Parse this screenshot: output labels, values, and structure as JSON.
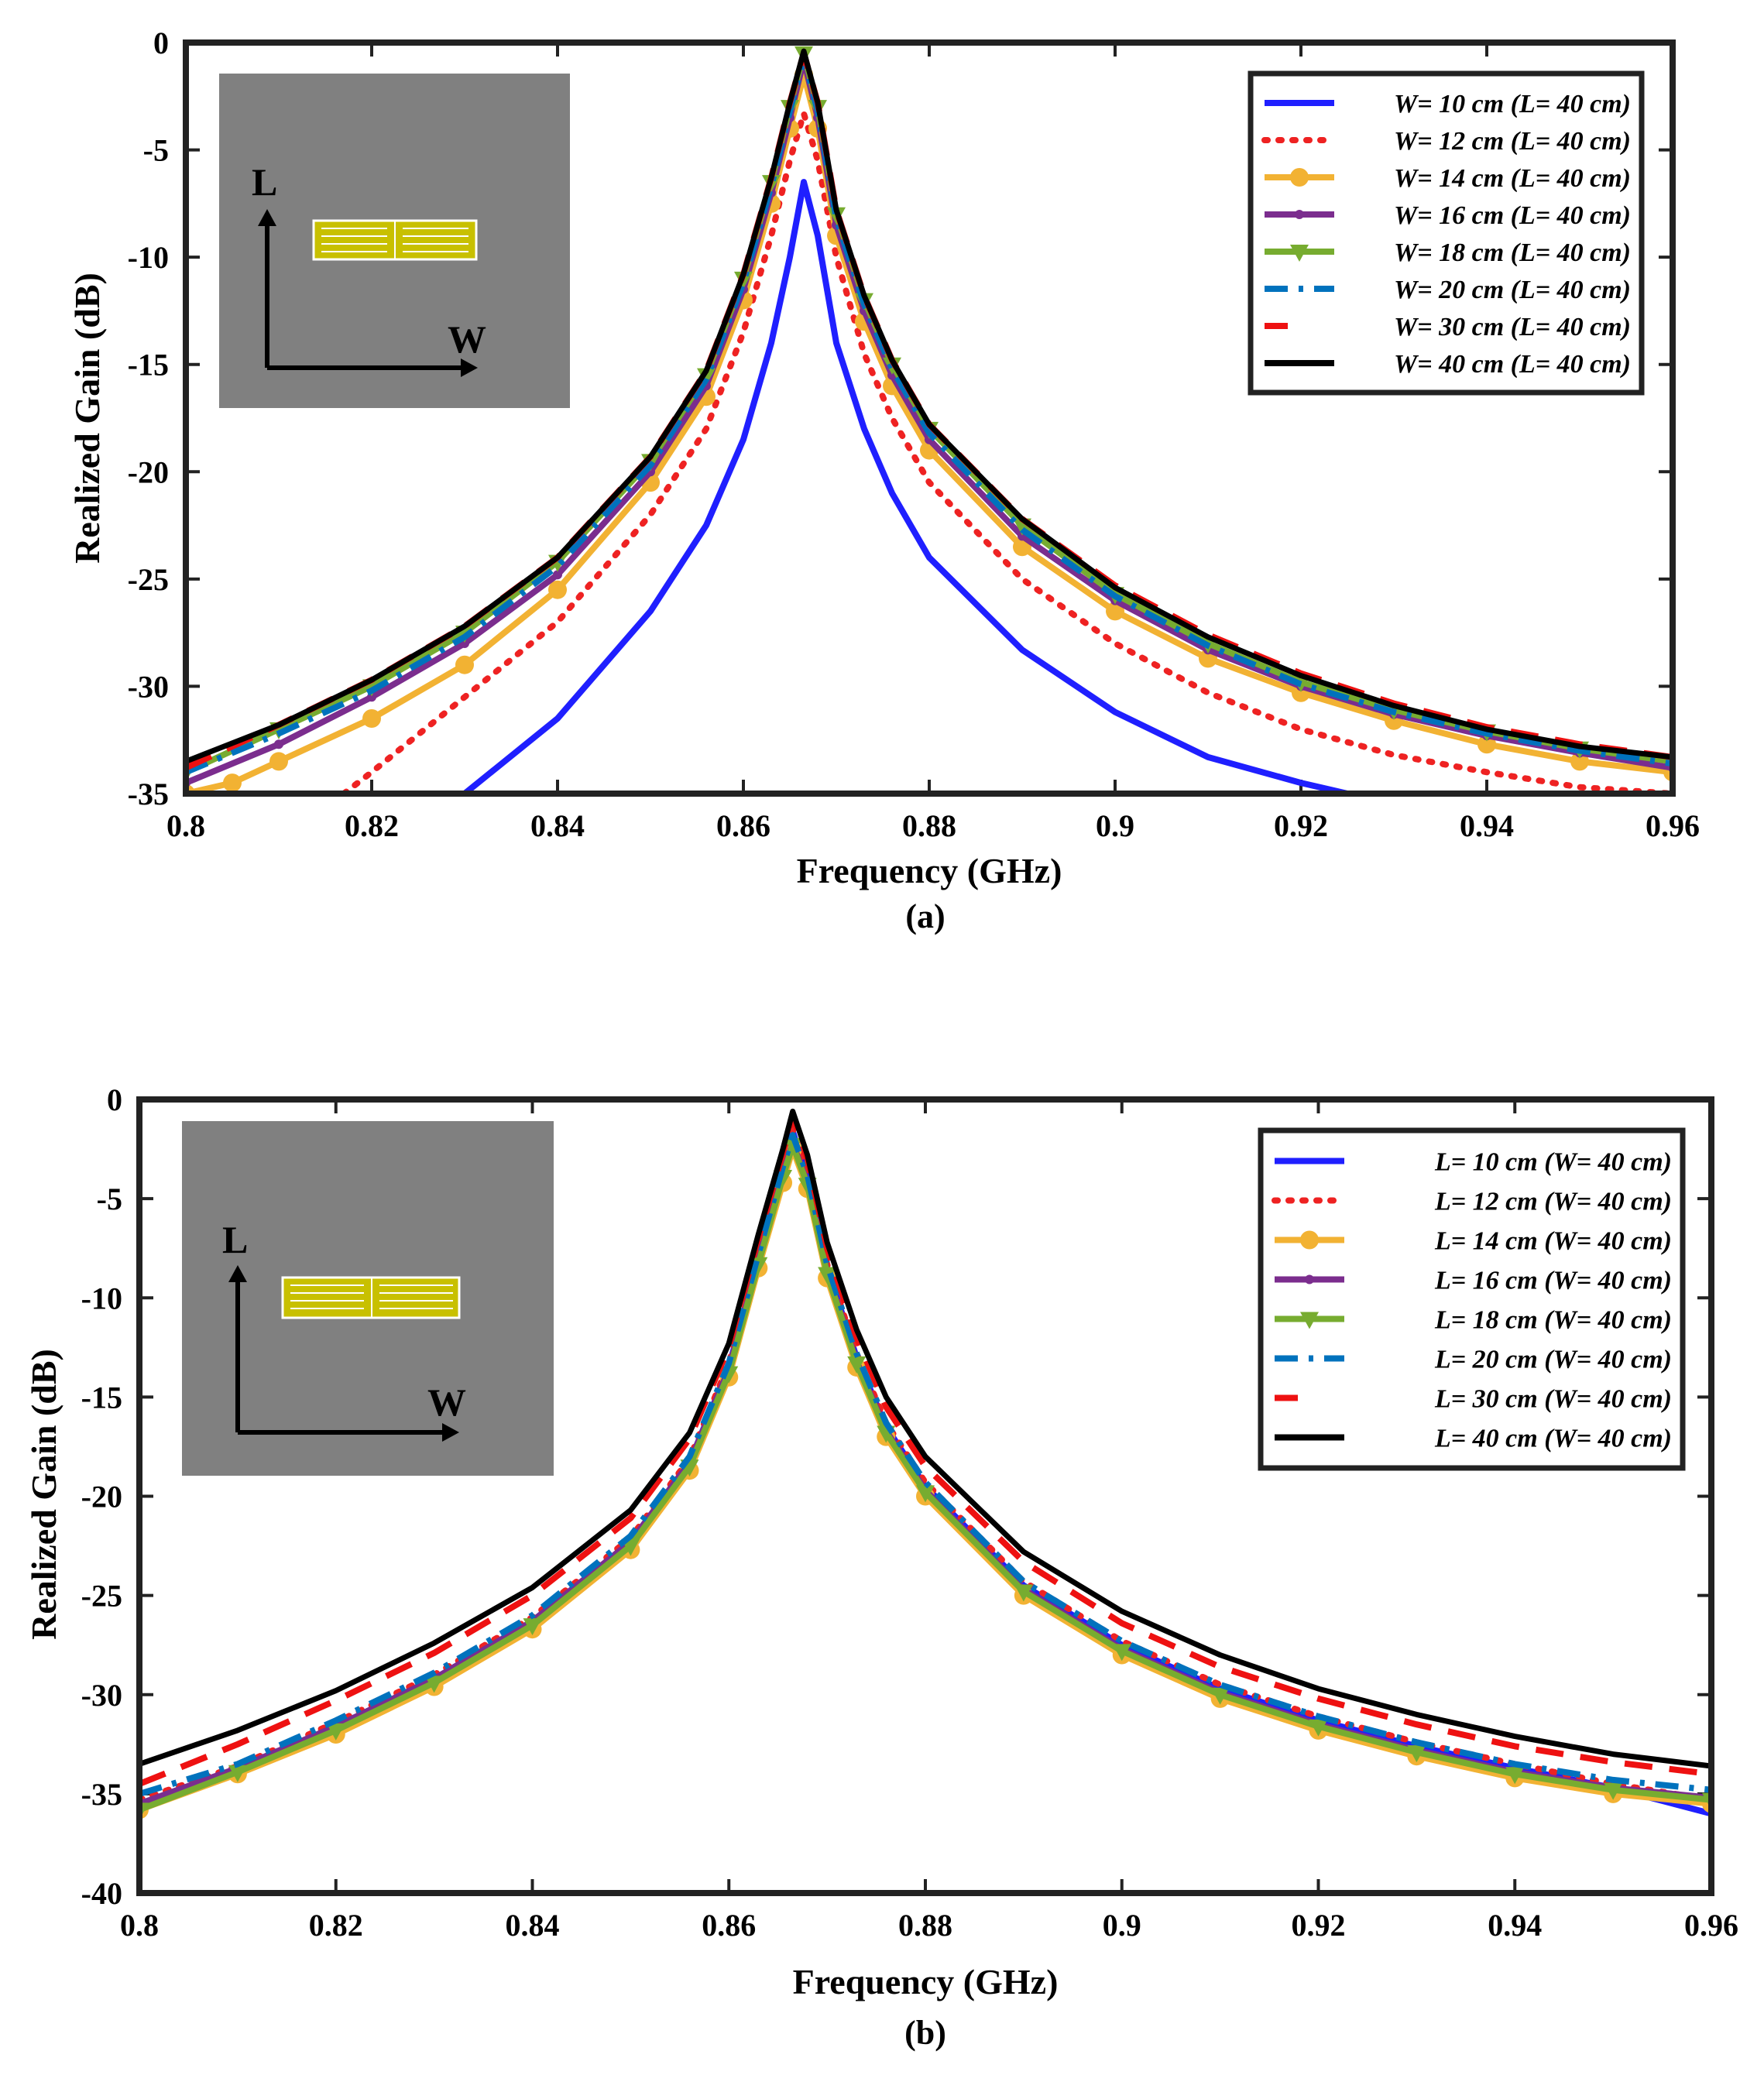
{
  "chart_data": [
    {
      "type": "line",
      "panel_label": "(a)",
      "xlabel": "Frequency (GHz)",
      "ylabel": "Realized Gain (dB)",
      "xlim": [
        0.8,
        0.96
      ],
      "ylim": [
        -35,
        0
      ],
      "xticks": [
        0.8,
        0.82,
        0.84,
        0.86,
        0.88,
        0.9,
        0.92,
        0.94,
        0.96
      ],
      "yticks": [
        0,
        -5,
        -10,
        -15,
        -20,
        -25,
        -30,
        -35
      ],
      "xtick_labels": [
        "0.8",
        "0.82",
        "0.84",
        "0.86",
        "0.88",
        "0.9",
        "0.92",
        "0.94",
        "0.96"
      ],
      "ytick_labels": [
        "0",
        "-5",
        "-10",
        "-15",
        "-20",
        "-25",
        "-30",
        "-35"
      ],
      "legend_position": "top-right",
      "inset": {
        "axis_vertical": "L",
        "axis_horizontal": "W"
      },
      "series": [
        {
          "name": "W= 10 cm (L= 40 cm)",
          "color": "#1f1fff",
          "style": "solid",
          "marker": "none",
          "x": [
            0.83,
            0.84,
            0.85,
            0.856,
            0.86,
            0.863,
            0.865,
            0.8665,
            0.868,
            0.87,
            0.873,
            0.876,
            0.88,
            0.89,
            0.9,
            0.91,
            0.92,
            0.925
          ],
          "y": [
            -35,
            -31.5,
            -26.5,
            -22.5,
            -18.5,
            -14,
            -10,
            -6.5,
            -9,
            -14,
            -18,
            -21,
            -24,
            -28.3,
            -31.2,
            -33.3,
            -34.5,
            -35
          ]
        },
        {
          "name": "W= 12 cm (L= 40 cm)",
          "color": "#ee2222",
          "style": "dotted",
          "marker": "none",
          "x": [
            0.817,
            0.82,
            0.83,
            0.84,
            0.85,
            0.856,
            0.86,
            0.863,
            0.865,
            0.8665,
            0.868,
            0.87,
            0.873,
            0.876,
            0.88,
            0.89,
            0.9,
            0.91,
            0.92,
            0.93,
            0.94,
            0.95,
            0.96
          ],
          "y": [
            -35,
            -34,
            -30.5,
            -27,
            -22,
            -18,
            -13.5,
            -9,
            -5.5,
            -3.3,
            -5.5,
            -10,
            -14.5,
            -17.5,
            -20.5,
            -25,
            -28,
            -30.3,
            -32,
            -33.2,
            -34,
            -34.7,
            -35
          ]
        },
        {
          "name": "W= 14 cm (L= 40 cm)",
          "color": "#f2b233",
          "style": "solid",
          "marker": "circle",
          "x": [
            0.8,
            0.805,
            0.81,
            0.82,
            0.83,
            0.84,
            0.85,
            0.856,
            0.86,
            0.863,
            0.865,
            0.8665,
            0.868,
            0.87,
            0.873,
            0.876,
            0.88,
            0.89,
            0.9,
            0.91,
            0.92,
            0.93,
            0.94,
            0.95,
            0.96
          ],
          "y": [
            -35,
            -34.5,
            -33.5,
            -31.5,
            -29,
            -25.5,
            -20.5,
            -16.5,
            -12,
            -7.5,
            -4,
            -1.5,
            -4,
            -9,
            -13,
            -16,
            -19,
            -23.5,
            -26.5,
            -28.7,
            -30.3,
            -31.6,
            -32.7,
            -33.5,
            -34
          ]
        },
        {
          "name": "W= 16 cm (L= 40 cm)",
          "color": "#7b2d8e",
          "style": "solid",
          "marker": "small-dot",
          "x": [
            0.8,
            0.81,
            0.82,
            0.83,
            0.84,
            0.85,
            0.856,
            0.86,
            0.863,
            0.865,
            0.8665,
            0.868,
            0.87,
            0.873,
            0.876,
            0.88,
            0.89,
            0.9,
            0.91,
            0.92,
            0.93,
            0.94,
            0.95,
            0.96
          ],
          "y": [
            -34.5,
            -32.7,
            -30.5,
            -28,
            -24.8,
            -20,
            -16,
            -11.5,
            -7,
            -3.5,
            -0.8,
            -3.5,
            -8.5,
            -12.5,
            -15.5,
            -18.5,
            -23,
            -26,
            -28.3,
            -30,
            -31.3,
            -32.3,
            -33.1,
            -33.8
          ]
        },
        {
          "name": "W= 18 cm (L= 40 cm)",
          "color": "#77ac30",
          "style": "solid",
          "marker": "triangle-down",
          "x": [
            0.8,
            0.81,
            0.82,
            0.83,
            0.84,
            0.85,
            0.856,
            0.86,
            0.863,
            0.865,
            0.8665,
            0.868,
            0.87,
            0.873,
            0.876,
            0.88,
            0.89,
            0.9,
            0.91,
            0.92,
            0.93,
            0.94,
            0.95,
            0.96
          ],
          "y": [
            -34,
            -32,
            -30,
            -27.5,
            -24.2,
            -19.5,
            -15.5,
            -11,
            -6.5,
            -3,
            -0.5,
            -3,
            -8,
            -12,
            -15,
            -18,
            -22.5,
            -25.7,
            -28,
            -29.8,
            -31.1,
            -32.1,
            -32.9,
            -33.5
          ]
        },
        {
          "name": "W= 20 cm (L= 40 cm)",
          "color": "#0072bd",
          "style": "dashdot",
          "marker": "none",
          "x": [
            0.8,
            0.81,
            0.82,
            0.83,
            0.84,
            0.85,
            0.856,
            0.86,
            0.863,
            0.865,
            0.8665,
            0.868,
            0.87,
            0.873,
            0.876,
            0.88,
            0.89,
            0.9,
            0.91,
            0.92,
            0.93,
            0.94,
            0.95,
            0.96
          ],
          "y": [
            -34,
            -32.2,
            -30.2,
            -27.7,
            -24.4,
            -19.7,
            -15.7,
            -11.2,
            -6.7,
            -3.2,
            -0.7,
            -3.2,
            -8.2,
            -12.2,
            -15.2,
            -18.2,
            -22.7,
            -25.8,
            -28.1,
            -29.9,
            -31.2,
            -32.2,
            -33,
            -33.6
          ]
        },
        {
          "name": "W= 30 cm (L= 40 cm)",
          "color": "#ee1111",
          "style": "dashed",
          "marker": "none",
          "x": [
            0.8,
            0.81,
            0.82,
            0.83,
            0.84,
            0.85,
            0.856,
            0.86,
            0.863,
            0.865,
            0.8665,
            0.868,
            0.87,
            0.873,
            0.876,
            0.88,
            0.89,
            0.9,
            0.91,
            0.92,
            0.93,
            0.94,
            0.95,
            0.96
          ],
          "y": [
            -33.8,
            -31.8,
            -29.7,
            -27.2,
            -24,
            -19.3,
            -15.3,
            -10.8,
            -6.3,
            -2.8,
            -0.5,
            -2.8,
            -7.8,
            -11.8,
            -14.8,
            -17.8,
            -22.2,
            -25.3,
            -27.6,
            -29.4,
            -30.8,
            -31.9,
            -32.7,
            -33.3
          ]
        },
        {
          "name": "W= 40 cm (L= 40 cm)",
          "color": "#000000",
          "style": "solid",
          "marker": "none",
          "x": [
            0.8,
            0.81,
            0.82,
            0.83,
            0.84,
            0.85,
            0.856,
            0.86,
            0.863,
            0.865,
            0.8665,
            0.868,
            0.87,
            0.873,
            0.876,
            0.88,
            0.89,
            0.9,
            0.91,
            0.92,
            0.93,
            0.94,
            0.95,
            0.96
          ],
          "y": [
            -33.5,
            -31.8,
            -29.7,
            -27.2,
            -24,
            -19.3,
            -15.3,
            -10.8,
            -6.3,
            -2.8,
            -0.4,
            -2.8,
            -7.8,
            -11.8,
            -14.8,
            -17.8,
            -22.2,
            -25.4,
            -27.7,
            -29.5,
            -30.9,
            -32,
            -32.8,
            -33.3
          ]
        }
      ]
    },
    {
      "type": "line",
      "panel_label": "(b)",
      "xlabel": "Frequency (GHz)",
      "ylabel": "Realized Gain (dB)",
      "xlim": [
        0.8,
        0.96
      ],
      "ylim": [
        -40,
        0
      ],
      "xticks": [
        0.8,
        0.82,
        0.84,
        0.86,
        0.88,
        0.9,
        0.92,
        0.94,
        0.96
      ],
      "yticks": [
        0,
        -5,
        -10,
        -15,
        -20,
        -25,
        -30,
        -35,
        -40
      ],
      "xtick_labels": [
        "0.8",
        "0.82",
        "0.84",
        "0.86",
        "0.88",
        "0.9",
        "0.92",
        "0.94",
        "0.96"
      ],
      "ytick_labels": [
        "0",
        "-5",
        "-10",
        "-15",
        "-20",
        "-25",
        "-30",
        "-35",
        "-40"
      ],
      "legend_position": "top-right",
      "inset": {
        "axis_vertical": "L",
        "axis_horizontal": "W"
      },
      "series": [
        {
          "name": "L= 10 cm (W= 40 cm)",
          "color": "#1f1fff",
          "style": "solid",
          "marker": "none",
          "x": [
            0.8,
            0.81,
            0.82,
            0.83,
            0.84,
            0.85,
            0.856,
            0.86,
            0.863,
            0.8655,
            0.8665,
            0.868,
            0.87,
            0.873,
            0.876,
            0.88,
            0.89,
            0.9,
            0.91,
            0.92,
            0.93,
            0.94,
            0.95,
            0.96
          ],
          "y": [
            -35.5,
            -33.8,
            -31.6,
            -29.2,
            -26.3,
            -22.3,
            -18.3,
            -13.5,
            -8,
            -3.5,
            -1.6,
            -4,
            -8.5,
            -13,
            -16.5,
            -19.5,
            -24.5,
            -27.5,
            -29.7,
            -31.3,
            -32.6,
            -33.7,
            -34.7,
            -36
          ]
        },
        {
          "name": "L= 12 cm (W= 40 cm)",
          "color": "#ee2222",
          "style": "dotted",
          "marker": "none",
          "x": [
            0.8,
            0.81,
            0.82,
            0.83,
            0.84,
            0.85,
            0.856,
            0.86,
            0.863,
            0.8655,
            0.8665,
            0.868,
            0.87,
            0.873,
            0.876,
            0.88,
            0.89,
            0.9,
            0.91,
            0.92,
            0.93,
            0.94,
            0.95,
            0.96
          ],
          "y": [
            -35.3,
            -33.6,
            -31.4,
            -29,
            -26.1,
            -22.1,
            -18.1,
            -13.3,
            -7.8,
            -3.3,
            -1.5,
            -3.8,
            -8.3,
            -12.8,
            -16.3,
            -19.3,
            -24.3,
            -27.3,
            -29.5,
            -31.1,
            -32.4,
            -33.5,
            -34.5,
            -35.3
          ]
        },
        {
          "name": "L= 14 cm (W= 40 cm)",
          "color": "#f2b233",
          "style": "solid",
          "marker": "circle",
          "x": [
            0.8,
            0.81,
            0.82,
            0.83,
            0.84,
            0.85,
            0.856,
            0.86,
            0.863,
            0.8655,
            0.8665,
            0.868,
            0.87,
            0.873,
            0.876,
            0.88,
            0.89,
            0.9,
            0.91,
            0.92,
            0.93,
            0.94,
            0.95,
            0.96
          ],
          "y": [
            -35.8,
            -34,
            -32,
            -29.6,
            -26.7,
            -22.7,
            -18.7,
            -14,
            -8.5,
            -4.2,
            -2.5,
            -4.5,
            -9,
            -13.5,
            -17,
            -20,
            -25,
            -28,
            -30.2,
            -31.8,
            -33.1,
            -34.2,
            -35,
            -35.5
          ]
        },
        {
          "name": "L= 16 cm (W= 40 cm)",
          "color": "#7b2d8e",
          "style": "solid",
          "marker": "small-dot",
          "x": [
            0.8,
            0.81,
            0.82,
            0.83,
            0.84,
            0.85,
            0.856,
            0.86,
            0.863,
            0.8655,
            0.8665,
            0.868,
            0.87,
            0.873,
            0.876,
            0.88,
            0.89,
            0.9,
            0.91,
            0.92,
            0.93,
            0.94,
            0.95,
            0.96
          ],
          "y": [
            -35.5,
            -33.7,
            -31.6,
            -29.2,
            -26.3,
            -22.3,
            -18.3,
            -13.6,
            -8.2,
            -3.8,
            -2.2,
            -4.2,
            -8.7,
            -13.2,
            -16.7,
            -19.7,
            -24.7,
            -27.7,
            -29.9,
            -31.5,
            -32.8,
            -33.9,
            -34.7,
            -35.2
          ]
        },
        {
          "name": "L= 18 cm (W= 40 cm)",
          "color": "#77ac30",
          "style": "solid",
          "marker": "triangle-down",
          "x": [
            0.8,
            0.81,
            0.82,
            0.83,
            0.84,
            0.85,
            0.856,
            0.86,
            0.863,
            0.8655,
            0.8665,
            0.868,
            0.87,
            0.873,
            0.876,
            0.88,
            0.89,
            0.9,
            0.91,
            0.92,
            0.93,
            0.94,
            0.95,
            0.96
          ],
          "y": [
            -35.8,
            -33.9,
            -31.8,
            -29.4,
            -26.5,
            -22.5,
            -18.5,
            -13.8,
            -8.3,
            -3.9,
            -2.3,
            -4.3,
            -8.8,
            -13.3,
            -16.8,
            -19.8,
            -24.8,
            -27.8,
            -30,
            -31.6,
            -32.9,
            -34,
            -34.8,
            -35.3
          ]
        },
        {
          "name": "L= 20 cm (W= 40 cm)",
          "color": "#0072bd",
          "style": "dashdot",
          "marker": "none",
          "x": [
            0.8,
            0.81,
            0.82,
            0.83,
            0.84,
            0.85,
            0.856,
            0.86,
            0.863,
            0.8655,
            0.8665,
            0.868,
            0.87,
            0.873,
            0.876,
            0.88,
            0.89,
            0.9,
            0.91,
            0.92,
            0.93,
            0.94,
            0.95,
            0.96
          ],
          "y": [
            -35,
            -33.5,
            -31.3,
            -28.9,
            -26,
            -22,
            -18,
            -13.3,
            -7.8,
            -3.4,
            -1.8,
            -3.8,
            -8.3,
            -12.8,
            -16.3,
            -19.3,
            -24.3,
            -27.3,
            -29.5,
            -31.1,
            -32.4,
            -33.5,
            -34.3,
            -34.8
          ]
        },
        {
          "name": "L= 30 cm (W= 40 cm)",
          "color": "#ee1111",
          "style": "dashed",
          "marker": "none",
          "x": [
            0.8,
            0.81,
            0.82,
            0.83,
            0.84,
            0.85,
            0.856,
            0.86,
            0.863,
            0.8655,
            0.8665,
            0.868,
            0.87,
            0.873,
            0.876,
            0.88,
            0.89,
            0.9,
            0.91,
            0.92,
            0.93,
            0.94,
            0.95,
            0.96
          ],
          "y": [
            -34.5,
            -32.5,
            -30.3,
            -27.9,
            -25,
            -21.1,
            -17.1,
            -12.5,
            -7,
            -2.7,
            -0.8,
            -3,
            -7.5,
            -12,
            -15.5,
            -18.5,
            -23.3,
            -26.4,
            -28.6,
            -30.2,
            -31.5,
            -32.6,
            -33.4,
            -34
          ]
        },
        {
          "name": "L= 40 cm (W= 40 cm)",
          "color": "#000000",
          "style": "solid",
          "marker": "none",
          "x": [
            0.8,
            0.81,
            0.82,
            0.83,
            0.84,
            0.85,
            0.856,
            0.86,
            0.863,
            0.8655,
            0.8665,
            0.868,
            0.87,
            0.873,
            0.876,
            0.88,
            0.89,
            0.9,
            0.91,
            0.92,
            0.93,
            0.94,
            0.95,
            0.96
          ],
          "y": [
            -33.5,
            -31.8,
            -29.8,
            -27.4,
            -24.6,
            -20.7,
            -16.8,
            -12.3,
            -6.8,
            -2.5,
            -0.6,
            -2.8,
            -7.2,
            -11.6,
            -15,
            -18,
            -22.8,
            -25.8,
            -28,
            -29.7,
            -31,
            -32.1,
            -33,
            -33.6
          ]
        }
      ]
    }
  ]
}
